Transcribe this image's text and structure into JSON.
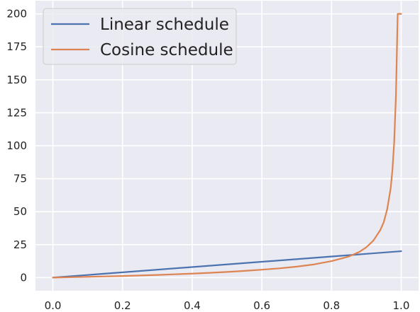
{
  "chart_data": {
    "type": "line",
    "x_ticks": [
      0.0,
      0.2,
      0.4,
      0.6,
      0.8,
      1.0
    ],
    "x_tick_labels": [
      "0.0",
      "0.2",
      "0.4",
      "0.6",
      "0.8",
      "1.0"
    ],
    "y_ticks": [
      0,
      25,
      50,
      75,
      100,
      125,
      150,
      175,
      200
    ],
    "y_tick_labels": [
      "0",
      "25",
      "50",
      "75",
      "100",
      "125",
      "150",
      "175",
      "200"
    ],
    "xlim": [
      -0.05,
      1.05
    ],
    "ylim": [
      -10,
      210
    ],
    "grid": true,
    "legend_position": "top-left",
    "background_color": "#eaeaf2",
    "series": [
      {
        "name": "Linear schedule",
        "color": "#4c72b0",
        "x": [
          0.0,
          1.0
        ],
        "y": [
          0.0,
          20.0
        ]
      },
      {
        "name": "Cosine schedule",
        "color": "#dd8452",
        "x": [
          0.0,
          0.05,
          0.1,
          0.15,
          0.2,
          0.25,
          0.3,
          0.35,
          0.4,
          0.45,
          0.5,
          0.55,
          0.6,
          0.65,
          0.7,
          0.75,
          0.8,
          0.85,
          0.88,
          0.9,
          0.92,
          0.94,
          0.95,
          0.96,
          0.97,
          0.975,
          0.98,
          0.985,
          0.99,
          0.992,
          0.995,
          0.998,
          1.0
        ],
        "y": [
          0.0,
          0.3,
          0.6,
          0.9,
          1.2,
          1.6,
          2.0,
          2.5,
          3.0,
          3.6,
          4.3,
          5.1,
          6.0,
          7.0,
          8.3,
          10.0,
          12.5,
          16.0,
          19.5,
          23.0,
          28.0,
          36.0,
          42.0,
          52.0,
          68.0,
          82.0,
          103.0,
          138.0,
          200.0,
          200.0,
          200.0,
          200.0,
          200.0
        ]
      }
    ]
  }
}
